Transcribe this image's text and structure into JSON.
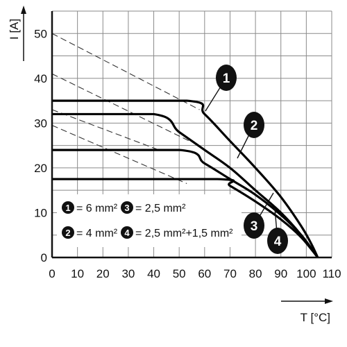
{
  "chart_data": {
    "type": "line",
    "title": "",
    "xlabel": "T [°C]",
    "ylabel": "I [A]",
    "xlim": [
      0,
      110
    ],
    "ylim": [
      0,
      55
    ],
    "x_ticks": [
      "0",
      "10",
      "20",
      "30",
      "40",
      "50",
      "60",
      "70",
      "80",
      "90",
      "100",
      "110"
    ],
    "y_ticks": [
      "0",
      "10",
      "20",
      "30",
      "40",
      "50"
    ],
    "grid": true,
    "series": [
      {
        "name": "6 mm²",
        "label": "1",
        "color": "#000000",
        "x": [
          0,
          53,
          60,
          70,
          80,
          90,
          98,
          102,
          104.5
        ],
        "y": [
          35,
          35,
          32,
          26,
          20,
          13.5,
          7,
          3,
          0
        ]
      },
      {
        "name": "4 mm²",
        "label": "2",
        "color": "#000000",
        "x": [
          0,
          40,
          50,
          60,
          70,
          80,
          90,
          98,
          104.5
        ],
        "y": [
          32,
          32,
          28,
          24,
          20,
          15,
          10,
          5,
          0
        ]
      },
      {
        "name": "2,5 mm²",
        "label": "3",
        "color": "#000000",
        "x": [
          0,
          50,
          60,
          70,
          80,
          90,
          98,
          104.5
        ],
        "y": [
          24,
          24,
          21,
          17.5,
          14,
          9.5,
          5,
          0
        ]
      },
      {
        "name": "2,5 mm²+1,5 mm²",
        "label": "4",
        "color": "#000000",
        "x": [
          0,
          65,
          70,
          80,
          90,
          98,
          104.5
        ],
        "y": [
          17.5,
          17.5,
          16,
          12.5,
          8.5,
          4.5,
          0
        ]
      }
    ],
    "reference_lines": [
      {
        "x": [
          0,
          58
        ],
        "y": [
          50,
          33
        ]
      },
      {
        "x": [
          0,
          54
        ],
        "y": [
          41,
          26
        ]
      },
      {
        "x": [
          0,
          42
        ],
        "y": [
          33,
          24
        ]
      },
      {
        "x": [
          0,
          53
        ],
        "y": [
          29.5,
          16.5
        ]
      }
    ],
    "legend": {
      "position": "bottom-left",
      "items": [
        {
          "num": "1",
          "text": "= 6 mm²"
        },
        {
          "num": "3",
          "text": "= 2,5 mm²"
        },
        {
          "num": "2",
          "text": "= 4 mm²"
        },
        {
          "num": "4",
          "text": "= 2,5 mm²+1,5 mm²"
        }
      ]
    },
    "markers": [
      "1",
      "2",
      "3",
      "4"
    ]
  }
}
